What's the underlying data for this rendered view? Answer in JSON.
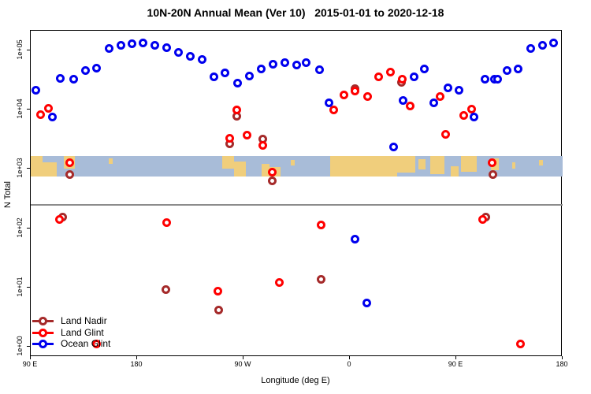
{
  "title": "10N-20N Annual Mean (Ver 10)   2015-01-01 to 2020-12-18",
  "chart_data": {
    "type": "scatter",
    "title": "10N-20N Annual Mean (Ver 10)   2015-01-01 to 2020-12-18",
    "xlabel": "Longitude (deg E)",
    "ylabel": "N Total",
    "x_axis": {
      "min": 90,
      "max": 540,
      "ticks": [
        {
          "lon": 90,
          "label": "90 E"
        },
        {
          "lon": 180,
          "label": "180"
        },
        {
          "lon": 270,
          "label": "90 W"
        },
        {
          "lon": 360,
          "label": "0"
        },
        {
          "lon": 450,
          "label": "90 E"
        },
        {
          "lon": 540,
          "label": "180"
        }
      ]
    },
    "y_axis": {
      "scale": "log10",
      "min": 1,
      "max": 100000,
      "ticks": [
        {
          "exp": 0,
          "label": "1e+00"
        },
        {
          "exp": 1,
          "label": "1e+01"
        },
        {
          "exp": 2,
          "label": "1e+02"
        },
        {
          "exp": 3,
          "label": "1e+03"
        },
        {
          "exp": 4,
          "label": "1e+04"
        },
        {
          "exp": 5,
          "label": "1e+05"
        }
      ]
    },
    "grid": false,
    "legend_position": "bottom-left",
    "reference_line": {
      "value": 250,
      "color": "#8c8c8c"
    },
    "map_band": {
      "value_top": 1650,
      "value_bottom": 745,
      "ocean_color": "#a8bcd8",
      "land_color": "#f0ce7c",
      "land_segments": [
        {
          "from": 90,
          "to": 100,
          "top": 0,
          "h": 1
        },
        {
          "from": 100,
          "to": 112,
          "top": 0.3,
          "h": 0.7
        },
        {
          "from": 118,
          "to": 127,
          "top": 0,
          "h": 0.6
        },
        {
          "from": 156,
          "to": 159,
          "top": 0.1,
          "h": 0.3
        },
        {
          "from": 252,
          "to": 262,
          "top": 0,
          "h": 0.6
        },
        {
          "from": 262,
          "to": 272,
          "top": 0.25,
          "h": 0.75
        },
        {
          "from": 285,
          "to": 292,
          "top": 0.4,
          "h": 0.6
        },
        {
          "from": 292,
          "to": 301,
          "top": 0.55,
          "h": 0.45
        },
        {
          "from": 310,
          "to": 313,
          "top": 0.2,
          "h": 0.25
        },
        {
          "from": 343,
          "to": 400,
          "top": 0,
          "h": 1
        },
        {
          "from": 400,
          "to": 415,
          "top": 0,
          "h": 0.8
        },
        {
          "from": 418,
          "to": 424,
          "top": 0.15,
          "h": 0.5
        },
        {
          "from": 428,
          "to": 440,
          "top": 0,
          "h": 0.9
        },
        {
          "from": 445,
          "to": 452,
          "top": 0.5,
          "h": 0.5
        },
        {
          "from": 454,
          "to": 467,
          "top": 0,
          "h": 0.75
        },
        {
          "from": 479,
          "to": 486,
          "top": 0.1,
          "h": 0.6
        },
        {
          "from": 497,
          "to": 500,
          "top": 0.3,
          "h": 0.3
        },
        {
          "from": 520,
          "to": 523,
          "top": 0.2,
          "h": 0.25
        }
      ]
    },
    "series": [
      {
        "name": "Land Nadir",
        "color": "#a52a2a",
        "points": [
          [
            117,
            155
          ],
          [
            123,
            813
          ],
          [
            204.5,
            9.3
          ],
          [
            249,
            4.1
          ],
          [
            258,
            2690
          ],
          [
            264,
            7760
          ],
          [
            286.5,
            3240
          ],
          [
            294,
            631
          ],
          [
            335.5,
            13.8
          ],
          [
            364,
            22400
          ],
          [
            403.5,
            28800
          ],
          [
            475,
            155
          ],
          [
            481,
            794
          ]
        ]
      },
      {
        "name": "Land Glint",
        "color": "#ff0000",
        "points": [
          [
            98.5,
            8130
          ],
          [
            105,
            10500
          ],
          [
            114.5,
            141
          ],
          [
            123,
            1290
          ],
          [
            145.5,
            1.12
          ],
          [
            205,
            126
          ],
          [
            248,
            8.7
          ],
          [
            258,
            3310
          ],
          [
            264,
            9770
          ],
          [
            273,
            3720
          ],
          [
            286.5,
            2510
          ],
          [
            294.5,
            871
          ],
          [
            300,
            12.3
          ],
          [
            335.5,
            112
          ],
          [
            346,
            9770
          ],
          [
            355,
            17800
          ],
          [
            364,
            20400
          ],
          [
            375,
            16600
          ],
          [
            384,
            36300
          ],
          [
            394,
            42700
          ],
          [
            404,
            33100
          ],
          [
            411,
            11500
          ],
          [
            436,
            16600
          ],
          [
            441,
            3800
          ],
          [
            456,
            7940
          ],
          [
            463,
            10200
          ],
          [
            472,
            141
          ],
          [
            480,
            1290
          ],
          [
            504,
            1.12
          ]
        ]
      },
      {
        "name": "Ocean Glint",
        "color": "#0000ee",
        "points": [
          [
            94,
            21400
          ],
          [
            108,
            7410
          ],
          [
            115,
            33900
          ],
          [
            126,
            33100
          ],
          [
            136,
            45700
          ],
          [
            145.5,
            50100
          ],
          [
            156,
            107000
          ],
          [
            166,
            123000
          ],
          [
            175.5,
            129000
          ],
          [
            185,
            132000
          ],
          [
            195,
            123000
          ],
          [
            205,
            110000
          ],
          [
            215,
            93300
          ],
          [
            225,
            79400
          ],
          [
            235,
            70800
          ],
          [
            245,
            36300
          ],
          [
            254,
            41700
          ],
          [
            265,
            28200
          ],
          [
            275,
            37200
          ],
          [
            285,
            49000
          ],
          [
            295,
            58900
          ],
          [
            305,
            63100
          ],
          [
            315,
            57500
          ],
          [
            323,
            63100
          ],
          [
            334,
            47900
          ],
          [
            342.5,
            12900
          ],
          [
            364,
            66
          ],
          [
            374,
            5.4
          ],
          [
            397,
            2340
          ],
          [
            405,
            14500
          ],
          [
            414,
            35500
          ],
          [
            423,
            49000
          ],
          [
            431,
            12900
          ],
          [
            443,
            23400
          ],
          [
            452,
            21400
          ],
          [
            465,
            7590
          ],
          [
            474,
            32400
          ],
          [
            482,
            32400
          ],
          [
            485,
            33100
          ],
          [
            493,
            45700
          ],
          [
            502,
            49000
          ],
          [
            513,
            107000
          ],
          [
            523,
            123000
          ],
          [
            532,
            132000
          ]
        ]
      }
    ]
  }
}
